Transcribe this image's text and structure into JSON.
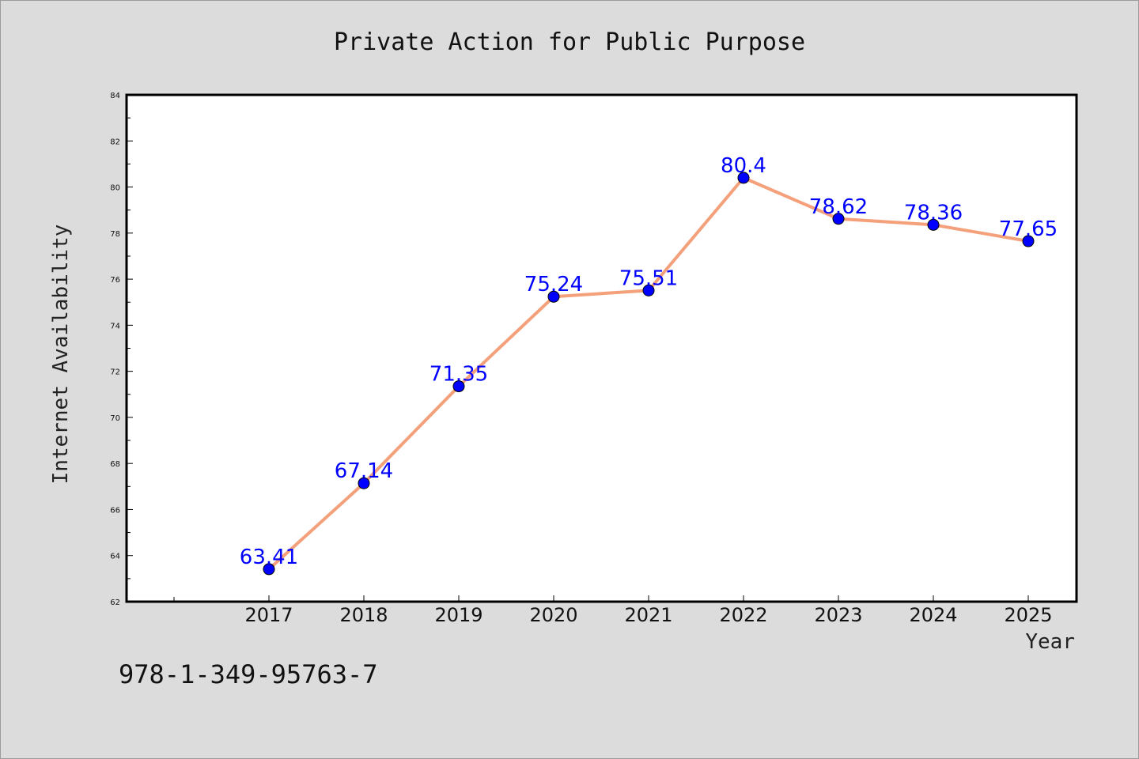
{
  "isbn": "978-1-349-95763-7",
  "chart_data": {
    "type": "line",
    "title": "Private Action for Public Purpose",
    "xlabel": "Year",
    "ylabel": "Internet Availability",
    "categories": [
      "2017",
      "2018",
      "2019",
      "2020",
      "2021",
      "2022",
      "2023",
      "2024",
      "2025"
    ],
    "series": [
      {
        "values": [
          63.41,
          67.14,
          71.35,
          75.24,
          75.51,
          80.4,
          78.62,
          78.36,
          77.65
        ],
        "line_color": "#f4a07a",
        "marker_color": "#0000ff"
      }
    ],
    "data_labels": [
      "63.41",
      "67.14",
      "71.35",
      "75.24",
      "75.51",
      "80.4",
      "78.62",
      "78.36",
      "77.65"
    ],
    "ylim": [
      62,
      84
    ],
    "yticks": [
      "62",
      "64",
      "66",
      "68",
      "70",
      "72",
      "74",
      "76",
      "78",
      "80",
      "82",
      "84"
    ],
    "grid": false,
    "legend": "none",
    "colors": {
      "background": "#dcdcdc",
      "plot_background": "#ffffff",
      "label_color": "#0000ff"
    }
  }
}
